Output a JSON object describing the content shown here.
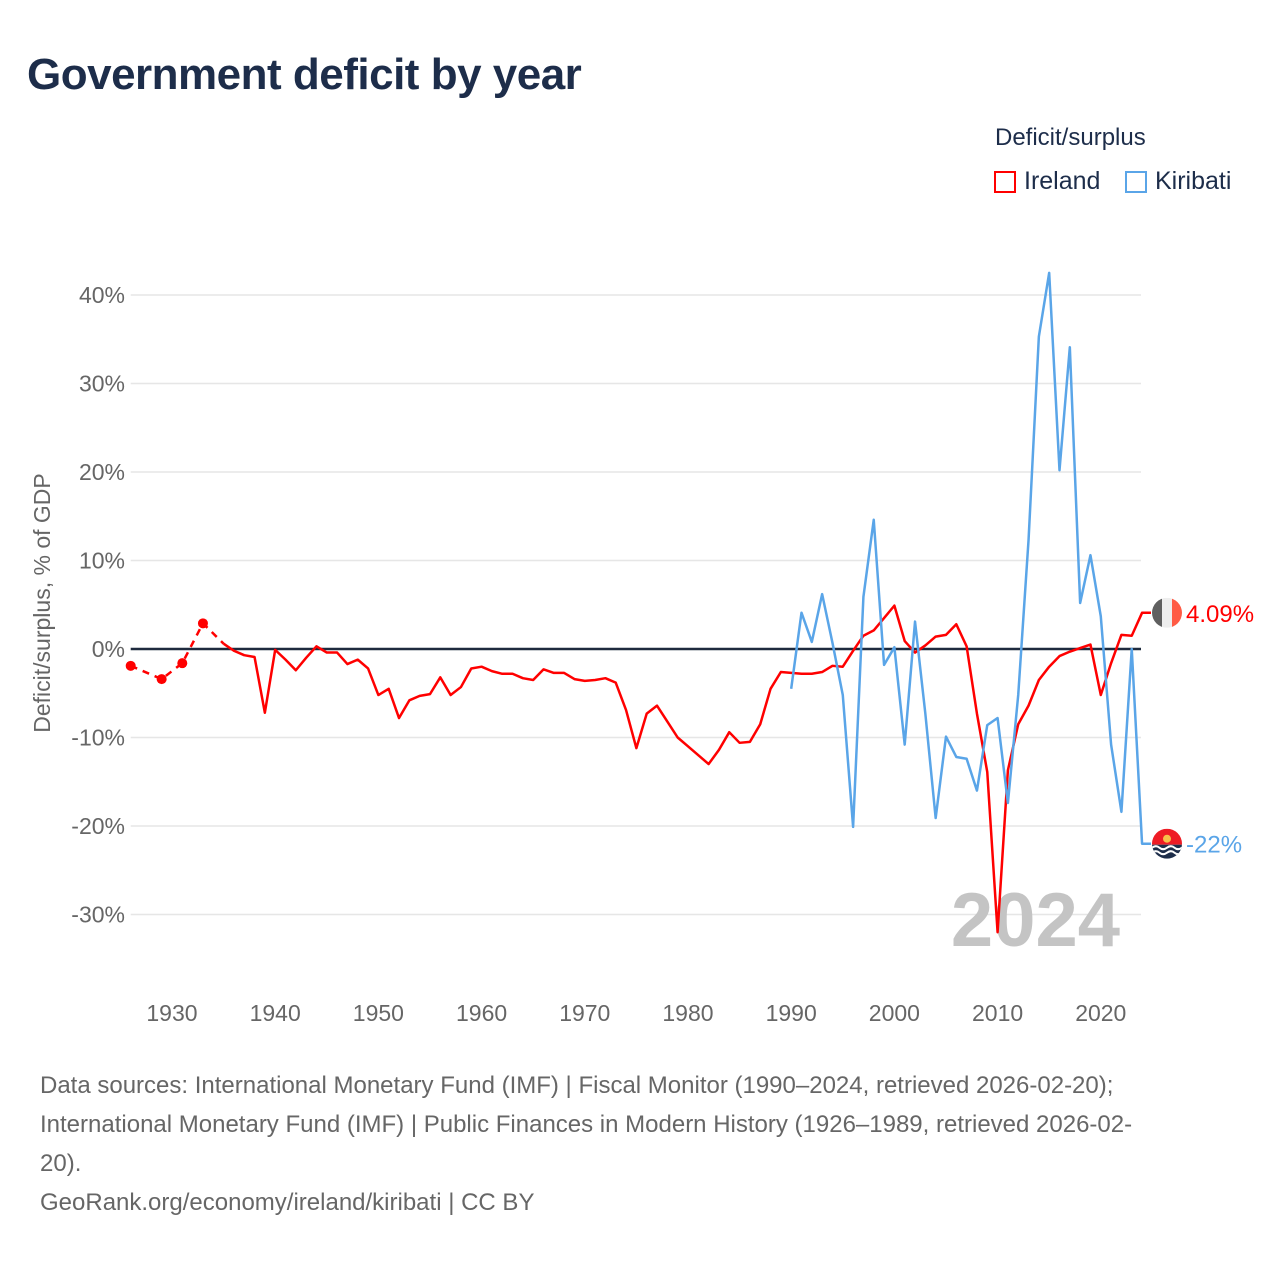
{
  "title": "Government deficit by year",
  "legend": {
    "title": "Deficit/surplus",
    "items": [
      {
        "name": "Ireland",
        "color": "#ff0000"
      },
      {
        "name": "Kiribati",
        "color": "#5aa5e8"
      }
    ]
  },
  "footer": {
    "line1": "Data sources: International Monetary Fund (IMF) | Fiscal Monitor (1990–2024, retrieved 2026-02-20);",
    "line2": "International Monetary Fund (IMF) | Public Finances in Modern History (1926–1989, retrieved 2026-02-",
    "line3": "20).",
    "line4": "GeoRank.org/economy/ireland/kiribati | CC BY"
  },
  "chart_data": {
    "type": "line",
    "title": "Government deficit by year",
    "xlabel": "",
    "ylabel": "Deficit/surplus, % of GDP",
    "xlim": [
      1926,
      2024
    ],
    "ylim": [
      -37,
      45
    ],
    "x_ticks": [
      1930,
      1940,
      1950,
      1960,
      1970,
      1980,
      1990,
      2000,
      2010,
      2020
    ],
    "y_ticks": [
      40,
      30,
      20,
      10,
      0,
      -10,
      -20,
      -30
    ],
    "y_tick_labels": [
      "40%",
      "30%",
      "20%",
      "10%",
      "0%",
      "-10%",
      "-20%",
      "-30%"
    ],
    "grid": true,
    "legend_position": "top-right",
    "current_year_label": "2024",
    "series": [
      {
        "name": "Ireland",
        "color": "#ff0000",
        "end_label": "4.09%",
        "flag_colors": [
          "#5f5f5f",
          "#eeeeee",
          "#ff5b45"
        ],
        "sparse_x": [
          1926,
          1929,
          1931,
          1933
        ],
        "sparse_y": [
          -1.9,
          -3.4,
          -1.6,
          2.9
        ],
        "start_year": 1935,
        "values": [
          0.6,
          -0.2,
          -0.7,
          -0.9,
          -7.2,
          -0.1,
          -1.2,
          -2.4,
          -1.0,
          0.3,
          -0.4,
          -0.4,
          -1.7,
          -1.2,
          -2.2,
          -5.2,
          -4.5,
          -7.8,
          -5.8,
          -5.3,
          -5.1,
          -3.2,
          -5.2,
          -4.3,
          -2.2,
          -2.0,
          -2.5,
          -2.8,
          -2.8,
          -3.3,
          -3.5,
          -2.3,
          -2.7,
          -2.7,
          -3.4,
          -3.6,
          -3.5,
          -3.3,
          -3.8,
          -6.9,
          -11.2,
          -7.3,
          -6.4,
          -8.2,
          -10.0,
          -11.0,
          -12.0,
          -13.0,
          -11.4,
          -9.4,
          -10.6,
          -10.5,
          -8.5,
          -4.5,
          -2.6,
          -2.7,
          -2.8,
          -2.8,
          -2.6,
          -1.9,
          -2.0,
          -0.2,
          1.5,
          2.1,
          3.5,
          4.9,
          0.9,
          -0.4,
          0.4,
          1.4,
          1.6,
          2.8,
          0.3,
          -7.3,
          -13.9,
          -32.0,
          -13.7,
          -8.5,
          -6.4,
          -3.5,
          -2.0,
          -0.8,
          -0.3,
          0.1,
          0.5,
          -5.2,
          -1.6,
          1.6,
          1.5,
          4.09
        ]
      },
      {
        "name": "Kiribati",
        "color": "#5aa5e8",
        "end_label": "-22%",
        "start_year": 1990,
        "values": [
          -4.5,
          4.1,
          0.8,
          6.2,
          0.7,
          -5.2,
          -20.1,
          5.9,
          14.6,
          -1.8,
          0.2,
          -10.8,
          3.1,
          -7.3,
          -19.1,
          -9.9,
          -12.2,
          -12.4,
          -16.0,
          -8.6,
          -7.8,
          -17.4,
          -5.2,
          12.3,
          35.3,
          42.5,
          20.2,
          34.1,
          5.2,
          10.6,
          3.7,
          -10.8,
          -18.4,
          0.0,
          -22.0
        ]
      }
    ]
  }
}
